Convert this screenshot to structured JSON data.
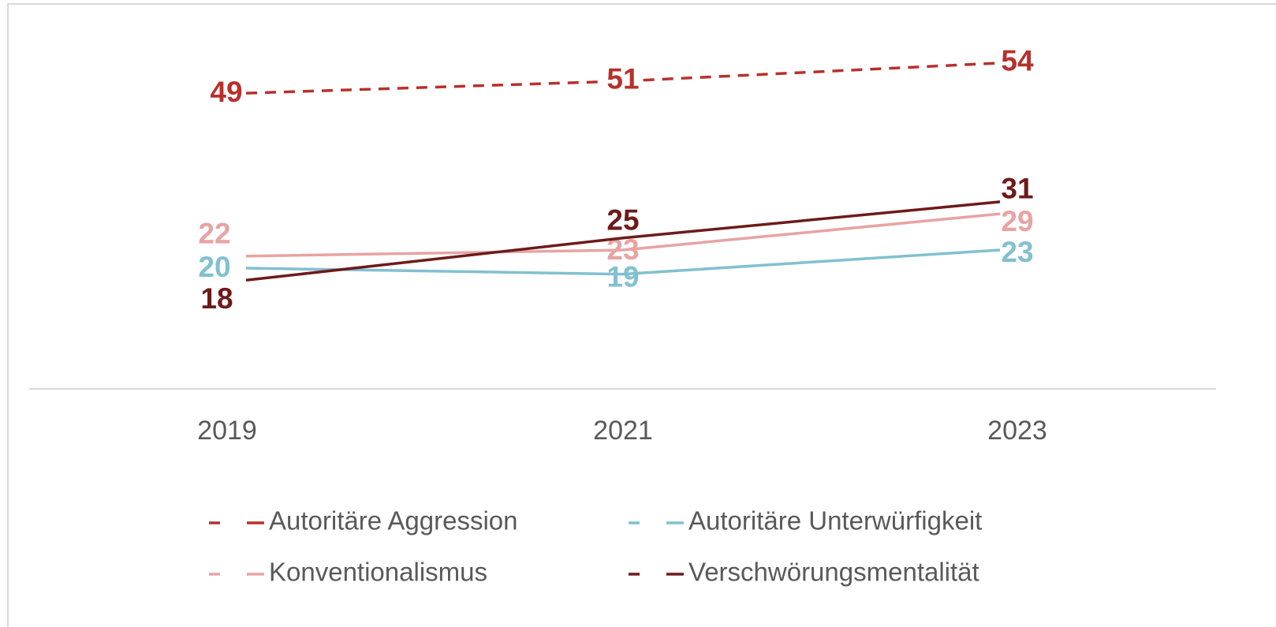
{
  "chart_data": {
    "type": "line",
    "categories": [
      "2019",
      "2021",
      "2023"
    ],
    "series": [
      {
        "name": "Autoritäre Aggression",
        "color": "#b7312c",
        "dashed": true,
        "values": [
          49,
          51,
          54
        ]
      },
      {
        "name": "Autoritäre Unterwürfigkeit",
        "color": "#82c0d0",
        "dashed": false,
        "values": [
          20,
          19,
          23
        ]
      },
      {
        "name": "Konventionalismus",
        "color": "#e8a3a3",
        "dashed": false,
        "values": [
          22,
          23,
          29
        ]
      },
      {
        "name": "Verschwörungsmentalität",
        "color": "#6e1a1a",
        "dashed": false,
        "values": [
          18,
          25,
          31
        ]
      }
    ],
    "ylim": [
      0,
      60
    ],
    "legend": "bottom"
  }
}
